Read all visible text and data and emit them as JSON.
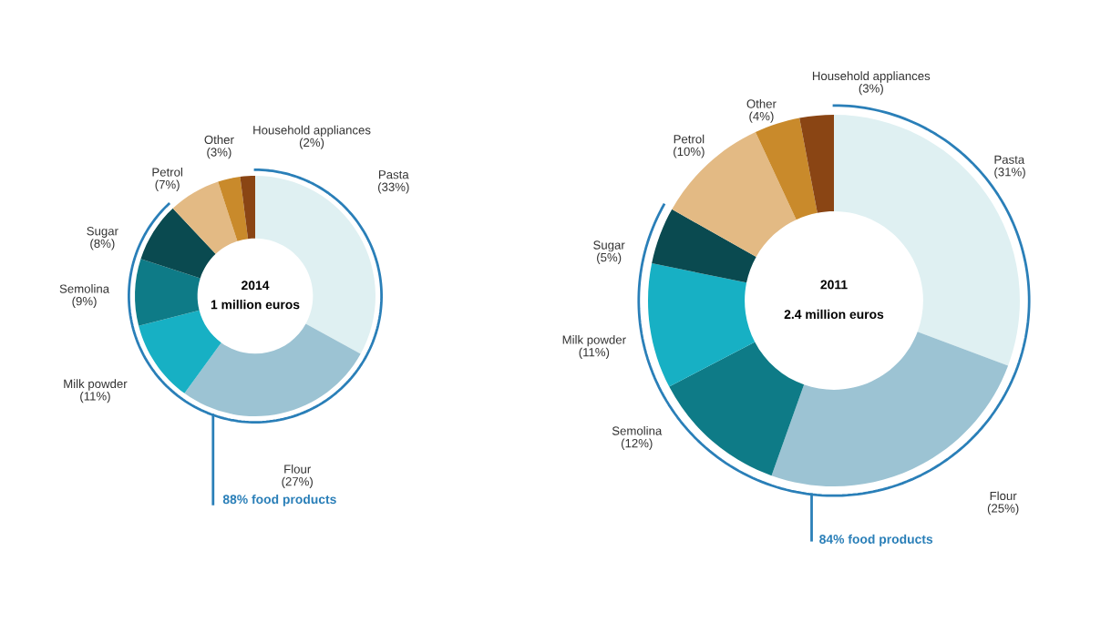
{
  "chart_data": [
    {
      "type": "donut",
      "title": "2014",
      "subtitle": "1 million euros",
      "categories": [
        "Pasta",
        "Flour",
        "Milk powder",
        "Semolina",
        "Sugar",
        "Petrol",
        "Other",
        "Household appliances"
      ],
      "values": [
        33,
        27,
        11,
        9,
        8,
        7,
        3,
        2
      ],
      "value_labels": [
        "(33%)",
        "(27%)",
        "(11%)",
        "(9%)",
        "(8%)",
        "(7%)",
        "(3%)",
        "(2%)"
      ],
      "colors": [
        "#dff0f2",
        "#9cc3d3",
        "#17b0c4",
        "#0e7b87",
        "#0a4a50",
        "#e3ba84",
        "#c98a2b",
        "#8a4514"
      ],
      "annotations": [
        "88% food products"
      ]
    },
    {
      "type": "donut",
      "title": "2011",
      "subtitle": "2.4 million euros",
      "categories": [
        "Pasta",
        "Flour",
        "Semolina",
        "Milk powder",
        "Sugar",
        "Petrol",
        "Other",
        "Household appliances"
      ],
      "values": [
        31,
        25,
        12,
        11,
        5,
        10,
        4,
        3
      ],
      "value_labels": [
        "(31%)",
        "(25%)",
        "(12%)",
        "(11%)",
        "(5%)",
        "(10%)",
        "(4%)",
        "(3%)"
      ],
      "colors": [
        "#dff0f2",
        "#9cc3d3",
        "#0e7b87",
        "#17b0c4",
        "#0a4a50",
        "#e3ba84",
        "#c98a2b",
        "#8a4514"
      ],
      "annotations": [
        "84% food products"
      ]
    }
  ]
}
